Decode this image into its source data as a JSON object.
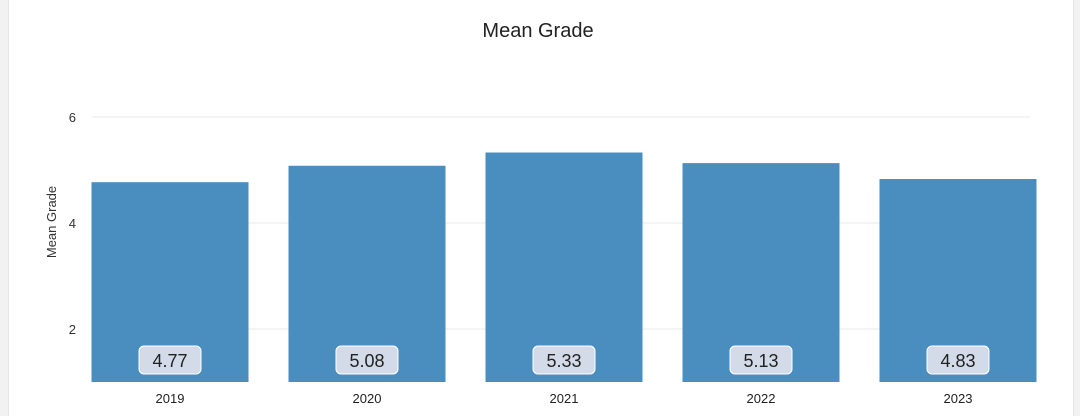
{
  "chart_data": {
    "type": "bar",
    "title": "Mean Grade",
    "xlabel": "",
    "ylabel": "Mean Grade",
    "categories": [
      "2019",
      "2020",
      "2021",
      "2022",
      "2023"
    ],
    "values": [
      4.77,
      5.08,
      5.33,
      5.13,
      4.83
    ],
    "data_labels": [
      "4.77",
      "5.08",
      "5.33",
      "5.13",
      "4.83"
    ],
    "yticks": [
      2,
      4,
      6
    ],
    "ylim": [
      1,
      6.6
    ],
    "grid": true,
    "legend": "none",
    "bar_color": "#4a8ec0"
  }
}
